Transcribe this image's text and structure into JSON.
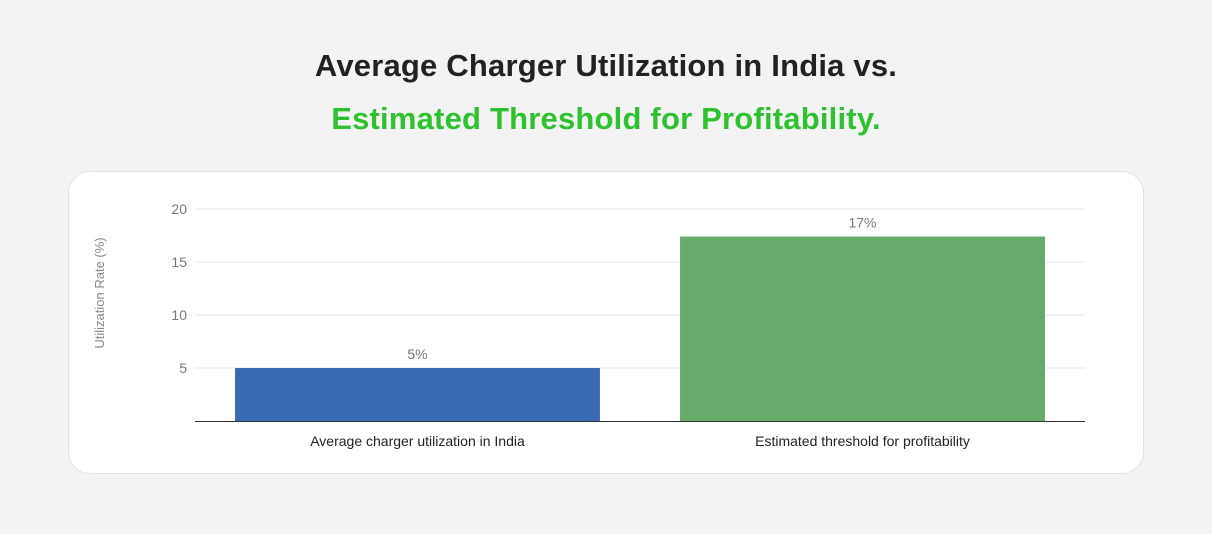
{
  "header": {
    "title_line_1": "Average Charger Utilization in India vs.",
    "title_line_2": "Estimated Threshold for Profitability."
  },
  "colors": {
    "title_accent": "#2ec22e",
    "bar_india": "#376ab2",
    "bar_threshold": "#65ac6a"
  },
  "chart_data": {
    "type": "bar",
    "title": "Average Charger Utilization in India vs. Estimated Threshold for Profitability.",
    "xlabel": "",
    "ylabel": "Utilization Rate (%)",
    "ylim": [
      0,
      20
    ],
    "yticks": [
      5,
      10,
      15,
      20
    ],
    "grid": true,
    "categories": [
      "Average charger utilization in India",
      "Estimated threshold for profitability"
    ],
    "values": [
      5,
      17.4
    ],
    "data_labels": [
      "5%",
      "17%"
    ],
    "bar_colors": [
      "#376ab2",
      "#65ac6a"
    ]
  }
}
